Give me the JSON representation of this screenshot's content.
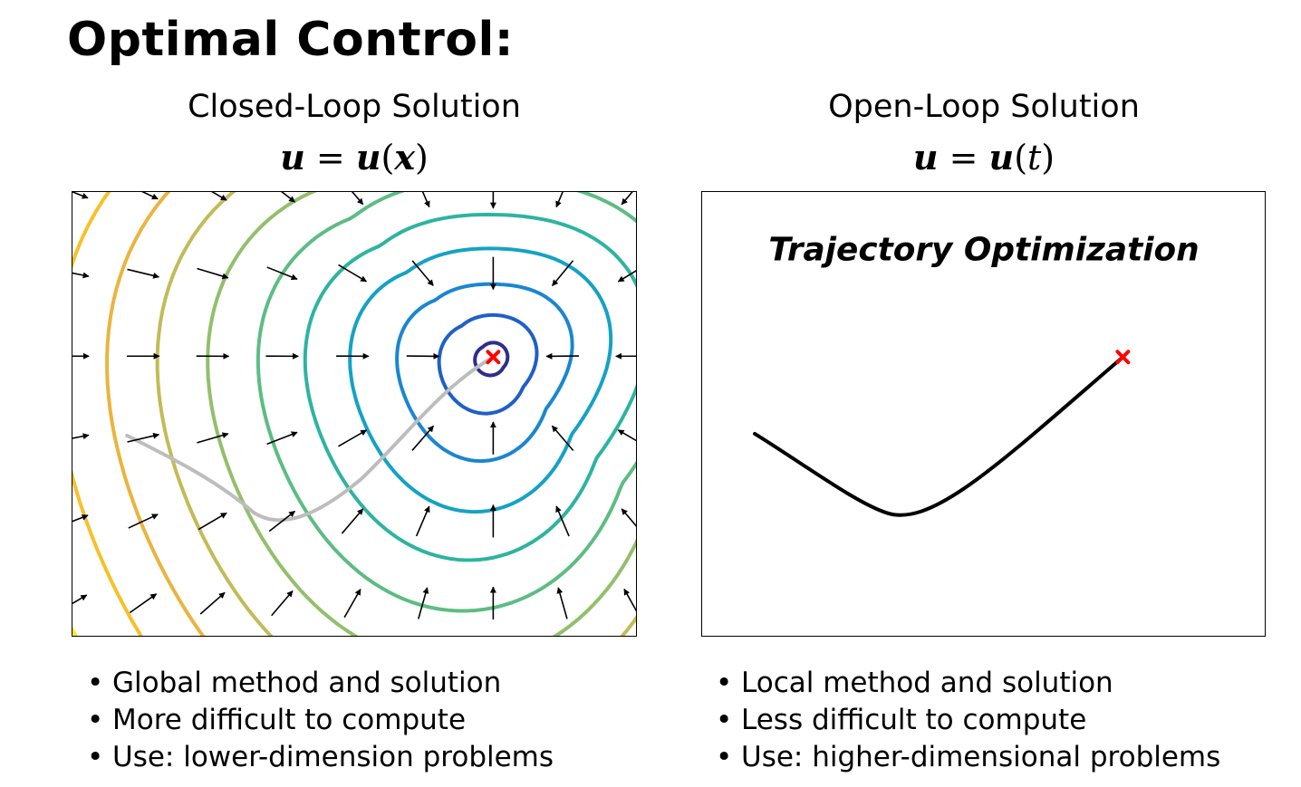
{
  "title": "Optimal Control:",
  "closed_loop": {
    "heading": "Closed-Loop Solution",
    "formula": {
      "lhs": "u",
      "eq": "=",
      "fn": "u",
      "arg": "x"
    },
    "colors": {
      "levels": [
        "#2d2f8a",
        "#1f5fc8",
        "#1a86d0",
        "#14a2c4",
        "#2db4a0",
        "#5cbd83",
        "#93bf6c",
        "#c2bb57",
        "#eab43e",
        "#f6c129",
        "#f9e81e"
      ],
      "trajectory": "#bdbdbd",
      "goal_marker": "#ff0000",
      "arrows": "#000000"
    },
    "goal_marker_icon": "red-x-goal-marker",
    "bullets": [
      "Global method and solution",
      "More difficult to compute",
      "Use: lower-dimension problems"
    ]
  },
  "open_loop": {
    "heading": "Open-Loop Solution",
    "formula": {
      "lhs": "u",
      "eq": "=",
      "fn": "u",
      "arg": "t"
    },
    "panel_label": "Trajectory Optimization",
    "colors": {
      "trajectory": "#000000",
      "goal_marker": "#ff0000"
    },
    "goal_marker_icon": "red-x-goal-marker",
    "bullets": [
      "Local method and solution",
      "Less difficult to compute",
      "Use: higher-dimensional problems"
    ]
  }
}
